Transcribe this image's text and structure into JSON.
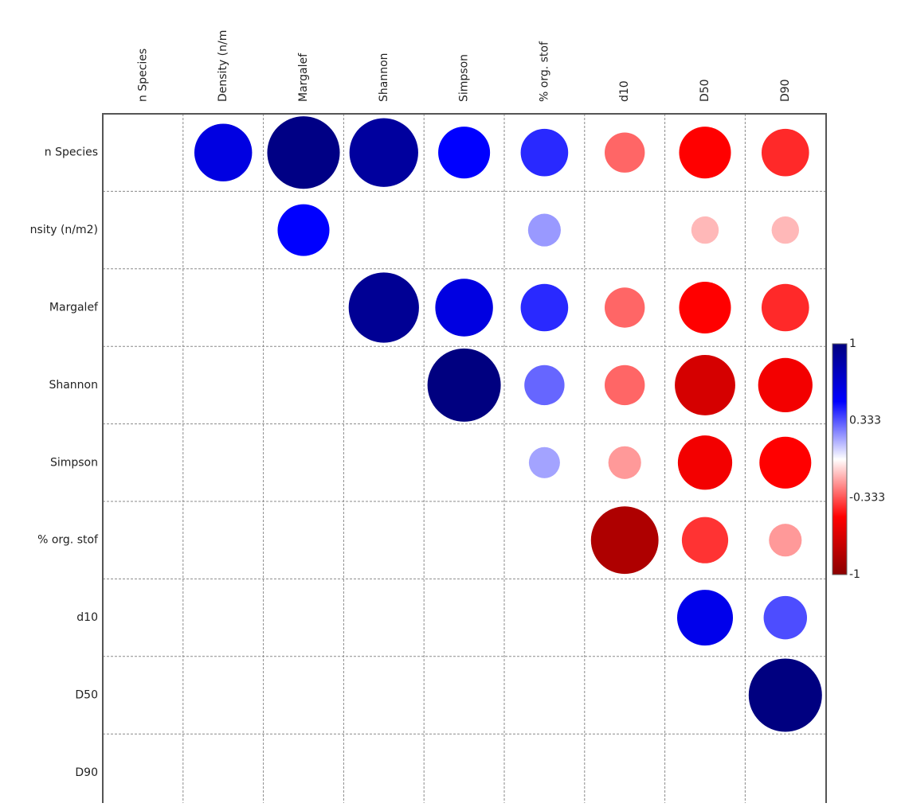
{
  "chart_data": {
    "type": "heatmap",
    "subtype": "correlation-circle-matrix",
    "title": "",
    "triangle": "upper",
    "variables": [
      "n Species",
      "Density (n/m",
      "Margalef",
      "Shannon",
      "Simpson",
      "% org. stof",
      "d10",
      "D50",
      "D90"
    ],
    "column_labels": [
      "n Species",
      "Density (n/m",
      "Margalef",
      "Shannon",
      "Simpson",
      "% org. stof",
      "d10",
      "D50",
      "D90"
    ],
    "row_labels": [
      "n Species",
      "nsity (n/m2)",
      "Margalef",
      "Shannon",
      "Simpson",
      "% org. stof",
      "d10",
      "D50",
      "D90"
    ],
    "values": [
      [
        null,
        0.62,
        0.98,
        0.88,
        0.5,
        0.42,
        -0.3,
        -0.5,
        -0.42
      ],
      [
        null,
        null,
        0.5,
        null,
        null,
        0.2,
        null,
        -0.14,
        -0.14
      ],
      [
        null,
        null,
        null,
        0.92,
        0.62,
        0.42,
        -0.3,
        -0.5,
        -0.42
      ],
      [
        null,
        null,
        null,
        null,
        1.0,
        0.3,
        -0.3,
        -0.68,
        -0.55
      ],
      [
        null,
        null,
        null,
        null,
        null,
        0.18,
        -0.2,
        -0.55,
        -0.5
      ],
      [
        null,
        null,
        null,
        null,
        null,
        null,
        -0.85,
        -0.4,
        -0.2
      ],
      [
        null,
        null,
        null,
        null,
        null,
        null,
        null,
        0.58,
        0.35
      ],
      [
        null,
        null,
        null,
        null,
        null,
        null,
        null,
        null,
        1.0
      ],
      [
        null,
        null,
        null,
        null,
        null,
        null,
        null,
        null,
        null
      ]
    ],
    "color_scale": {
      "min": -1,
      "max": 1,
      "ticks": [
        "1",
        "0.333",
        "-0.333",
        "-1"
      ],
      "colors": {
        "neg_strong": "#8b0000",
        "neg": "#ff0000",
        "zero": "#ffffff",
        "pos": "#0000ff",
        "pos_strong": "#000080"
      }
    },
    "grid": true,
    "legend_placement": "right"
  }
}
